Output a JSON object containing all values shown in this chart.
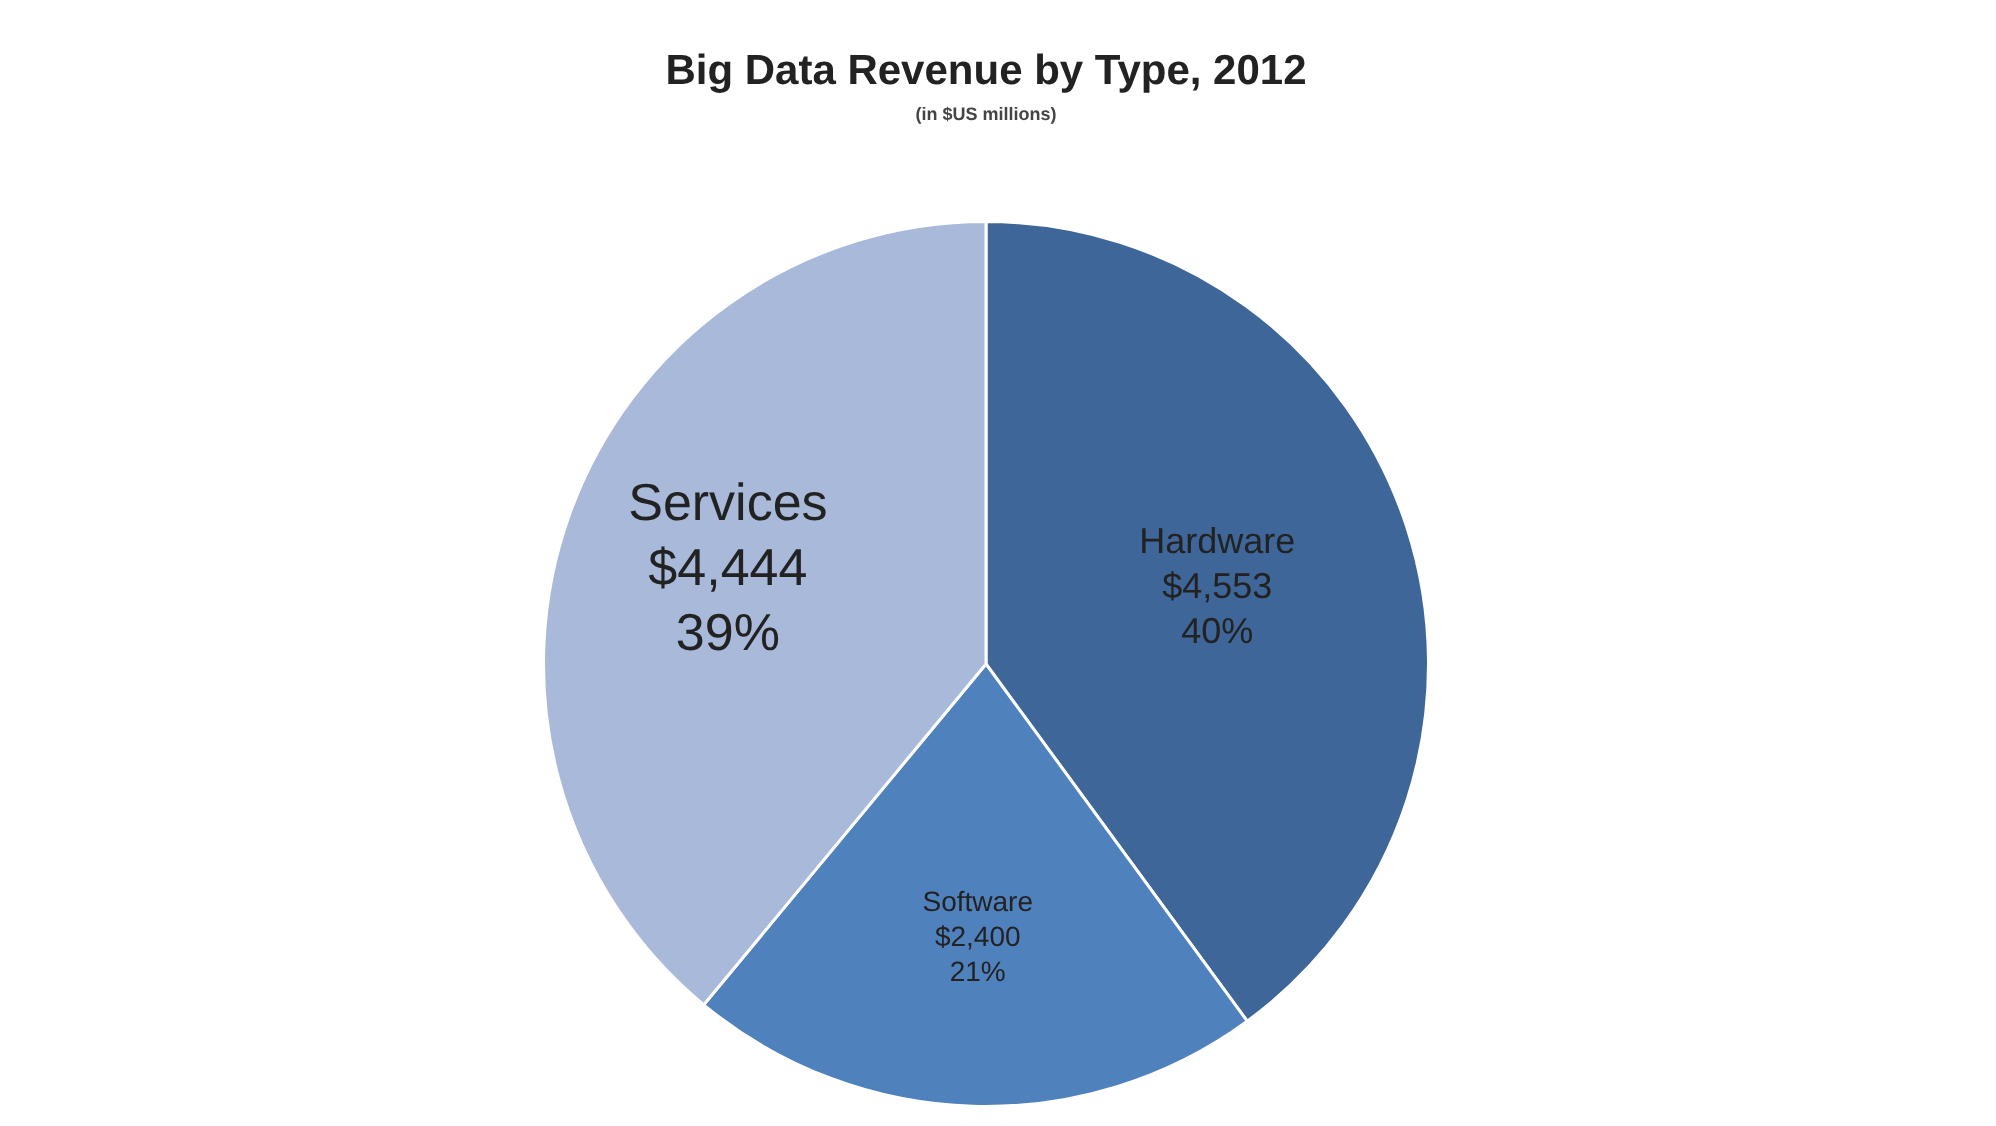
{
  "chart_data": {
    "type": "pie",
    "title": "Big Data Revenue by Type, 2012",
    "subtitle": "(in $US millions)",
    "categories": [
      "Hardware",
      "Software",
      "Services"
    ],
    "values": [
      4553,
      2400,
      4444
    ],
    "colors": [
      "#3f6699",
      "#4f81bd",
      "#a9b9d9"
    ],
    "value_labels": [
      "$4,553\n40%",
      "$2,400\n21%",
      "$4,444\n39%"
    ],
    "legend": false
  }
}
